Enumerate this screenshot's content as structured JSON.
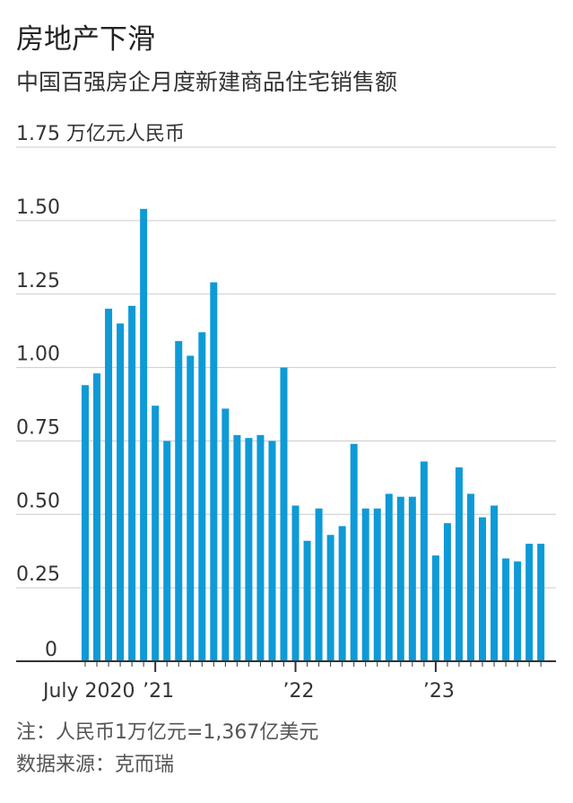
{
  "title": "房地产下滑",
  "subtitle": "中国百强房企月度新建商品住宅销售额",
  "notes": {
    "conversion": "注：人民币1万亿元=1,367亿美元",
    "source": "数据来源：克而瑞"
  },
  "colors": {
    "bar": "#0e9ad7",
    "grid": "#cccccc",
    "axis": "#333333"
  },
  "chart_data": {
    "type": "bar",
    "title": "",
    "ylabel": "万亿元人民币",
    "ylim": [
      0,
      1.75
    ],
    "yticks": [
      0,
      0.25,
      0.5,
      0.75,
      1.0,
      1.25,
      1.5,
      1.75
    ],
    "ytick_labels": [
      "0",
      "0.25",
      "0.50",
      "0.75",
      "1.00",
      "1.25",
      "1.50",
      "1.75 万亿元人民币"
    ],
    "grid": true,
    "categories": [
      "2020-07",
      "2020-08",
      "2020-09",
      "2020-10",
      "2020-11",
      "2020-12",
      "2021-01",
      "2021-02",
      "2021-03",
      "2021-04",
      "2021-05",
      "2021-06",
      "2021-07",
      "2021-08",
      "2021-09",
      "2021-10",
      "2021-11",
      "2021-12",
      "2022-01",
      "2022-02",
      "2022-03",
      "2022-04",
      "2022-05",
      "2022-06",
      "2022-07",
      "2022-08",
      "2022-09",
      "2022-10",
      "2022-11",
      "2022-12",
      "2023-01",
      "2023-02",
      "2023-03",
      "2023-04",
      "2023-05",
      "2023-06",
      "2023-07",
      "2023-08",
      "2023-09",
      "2023-10"
    ],
    "values": [
      0.94,
      0.98,
      1.2,
      1.15,
      1.21,
      1.54,
      0.87,
      0.75,
      1.09,
      1.04,
      1.12,
      1.29,
      0.86,
      0.77,
      0.76,
      0.77,
      0.75,
      1.0,
      0.53,
      0.41,
      0.52,
      0.43,
      0.46,
      0.74,
      0.52,
      0.52,
      0.57,
      0.56,
      0.56,
      0.68,
      0.36,
      0.47,
      0.66,
      0.57,
      0.49,
      0.53,
      0.35,
      0.34,
      0.4,
      0.4
    ],
    "xtick_labels": [
      {
        "index": 0,
        "label": "July 2020"
      },
      {
        "index": 6,
        "label": "’21"
      },
      {
        "index": 18,
        "label": "’22"
      },
      {
        "index": 30,
        "label": "’23"
      }
    ]
  }
}
